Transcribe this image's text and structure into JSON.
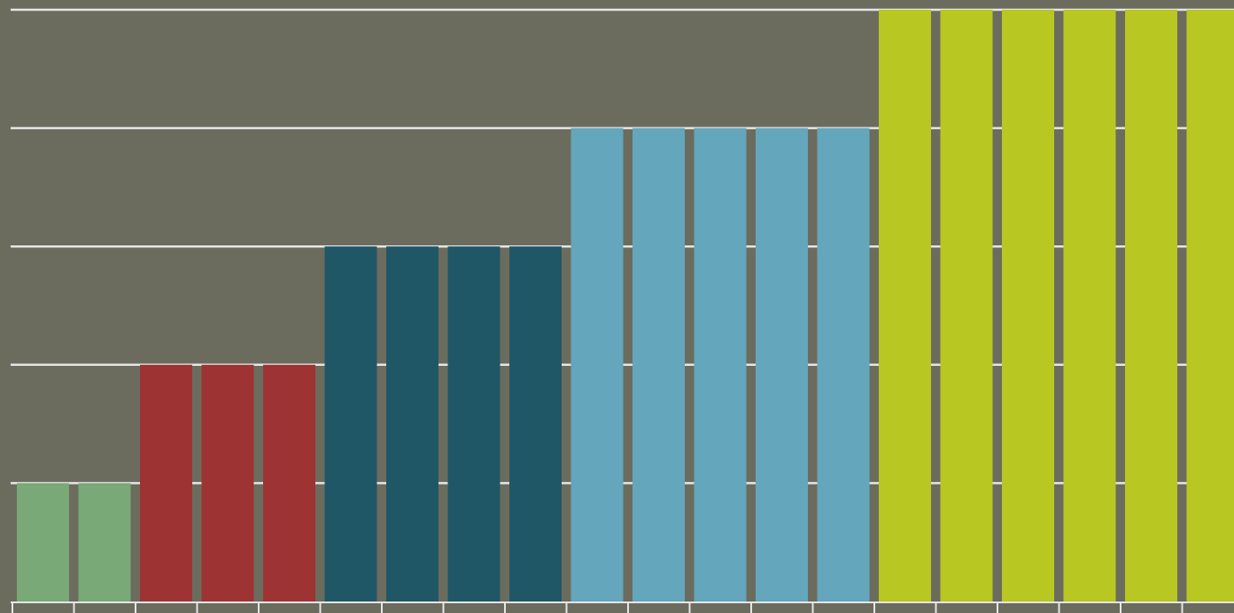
{
  "chart_data": {
    "type": "bar",
    "values": [
      1,
      1,
      2,
      2,
      2,
      3,
      3,
      3,
      3,
      4,
      4,
      4,
      4,
      4,
      5,
      5,
      5,
      5,
      5,
      5
    ],
    "bar_colors": [
      "#78a977",
      "#78a977",
      "#9e3333",
      "#9e3333",
      "#9e3333",
      "#205766",
      "#205766",
      "#205766",
      "#205766",
      "#64a6bb",
      "#64a6bb",
      "#64a6bb",
      "#64a6bb",
      "#64a6bb",
      "#b8c721",
      "#b8c721",
      "#b8c721",
      "#b8c721",
      "#b8c721",
      "#b8c721"
    ],
    "ylim": [
      0,
      5
    ],
    "grid": true,
    "legend": "none",
    "title": "",
    "xlabel": "",
    "ylabel": ""
  },
  "colors": {
    "background": "#6b6c5e",
    "gridline": "#e6e6e6",
    "axis": "#e6e6e6"
  }
}
